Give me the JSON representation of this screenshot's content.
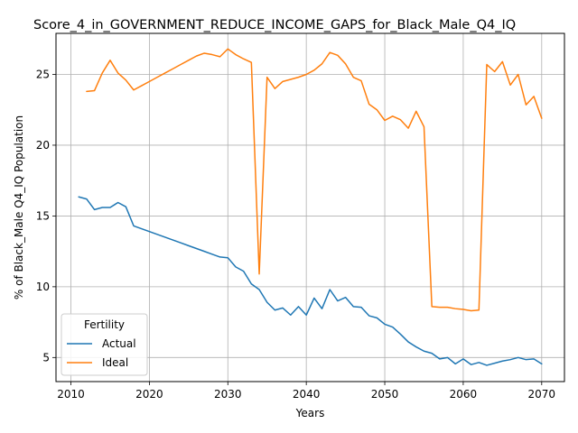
{
  "chart_data": {
    "type": "line",
    "title": "Score_4_in_GOVERNMENT_REDUCE_INCOME_GAPS_for_Black_Male_Q4_IQ",
    "xlabel": "Years",
    "ylabel": "% of Black_Male Q4_IQ Population",
    "xlim": [
      2008.1,
      2072.9
    ],
    "ylim": [
      3.3,
      27.9
    ],
    "xticks": [
      2010,
      2020,
      2030,
      2040,
      2050,
      2060,
      2070
    ],
    "yticks": [
      5,
      10,
      15,
      20,
      25
    ],
    "grid": true,
    "legend": {
      "title": "Fertility",
      "placement": "lower-left"
    },
    "series": [
      {
        "name": "Actual",
        "color": "#1f77b4",
        "x": [
          2011,
          2012,
          2013,
          2014,
          2015,
          2016,
          2017,
          2018,
          2019,
          2020,
          2021,
          2022,
          2023,
          2024,
          2025,
          2026,
          2027,
          2028,
          2029,
          2030,
          2031,
          2032,
          2033,
          2034,
          2035,
          2036,
          2037,
          2038,
          2039,
          2040,
          2041,
          2042,
          2043,
          2044,
          2045,
          2046,
          2047,
          2048,
          2049,
          2050,
          2051,
          2052,
          2053,
          2054,
          2055,
          2056,
          2057,
          2058,
          2059,
          2060,
          2061,
          2062,
          2063,
          2064,
          2065,
          2066,
          2067,
          2068,
          2069,
          2070
        ],
        "y": [
          16.35,
          16.2,
          15.45,
          15.6,
          15.6,
          15.95,
          15.65,
          14.3,
          14.1,
          13.9,
          13.7,
          13.5,
          13.3,
          13.1,
          12.9,
          12.7,
          12.5,
          12.3,
          12.1,
          12.05,
          11.4,
          11.1,
          10.2,
          9.8,
          8.9,
          8.35,
          8.5,
          8.0,
          8.6,
          8.0,
          9.2,
          8.45,
          9.8,
          9.0,
          9.25,
          8.6,
          8.55,
          7.95,
          7.8,
          7.35,
          7.15,
          6.65,
          6.1,
          5.75,
          5.45,
          5.3,
          4.9,
          5.0,
          4.55,
          4.9,
          4.5,
          4.65,
          4.45,
          4.6,
          4.75,
          4.85,
          5.0,
          4.85,
          4.9,
          4.55
        ]
      },
      {
        "name": "Ideal",
        "color": "#ff7f0e",
        "x": [
          2012,
          2013,
          2014,
          2015,
          2016,
          2017,
          2018,
          2019,
          2020,
          2021,
          2022,
          2023,
          2024,
          2025,
          2026,
          2027,
          2028,
          2029,
          2030,
          2031,
          2032,
          2033,
          2034,
          2035,
          2036,
          2037,
          2038,
          2039,
          2040,
          2041,
          2042,
          2043,
          2044,
          2045,
          2046,
          2047,
          2048,
          2049,
          2050,
          2051,
          2052,
          2053,
          2054,
          2055,
          2056,
          2057,
          2058,
          2059,
          2060,
          2061,
          2062,
          2063,
          2064,
          2065,
          2066,
          2067,
          2068,
          2069,
          2070
        ],
        "y": [
          23.8,
          23.85,
          25.1,
          26.0,
          25.1,
          24.6,
          23.9,
          24.2,
          24.5,
          24.8,
          25.1,
          25.4,
          25.7,
          26.0,
          26.3,
          26.5,
          26.4,
          26.25,
          26.8,
          26.4,
          26.1,
          25.85,
          10.9,
          24.8,
          24.0,
          24.5,
          24.65,
          24.8,
          25.0,
          25.3,
          25.75,
          26.55,
          26.35,
          25.75,
          24.8,
          24.55,
          22.9,
          22.5,
          21.75,
          22.05,
          21.8,
          21.2,
          22.4,
          21.3,
          8.6,
          8.55,
          8.55,
          8.45,
          8.4,
          8.3,
          8.35,
          25.7,
          25.2,
          25.9,
          24.25,
          25.0,
          22.85,
          23.45,
          21.9
        ]
      }
    ]
  }
}
